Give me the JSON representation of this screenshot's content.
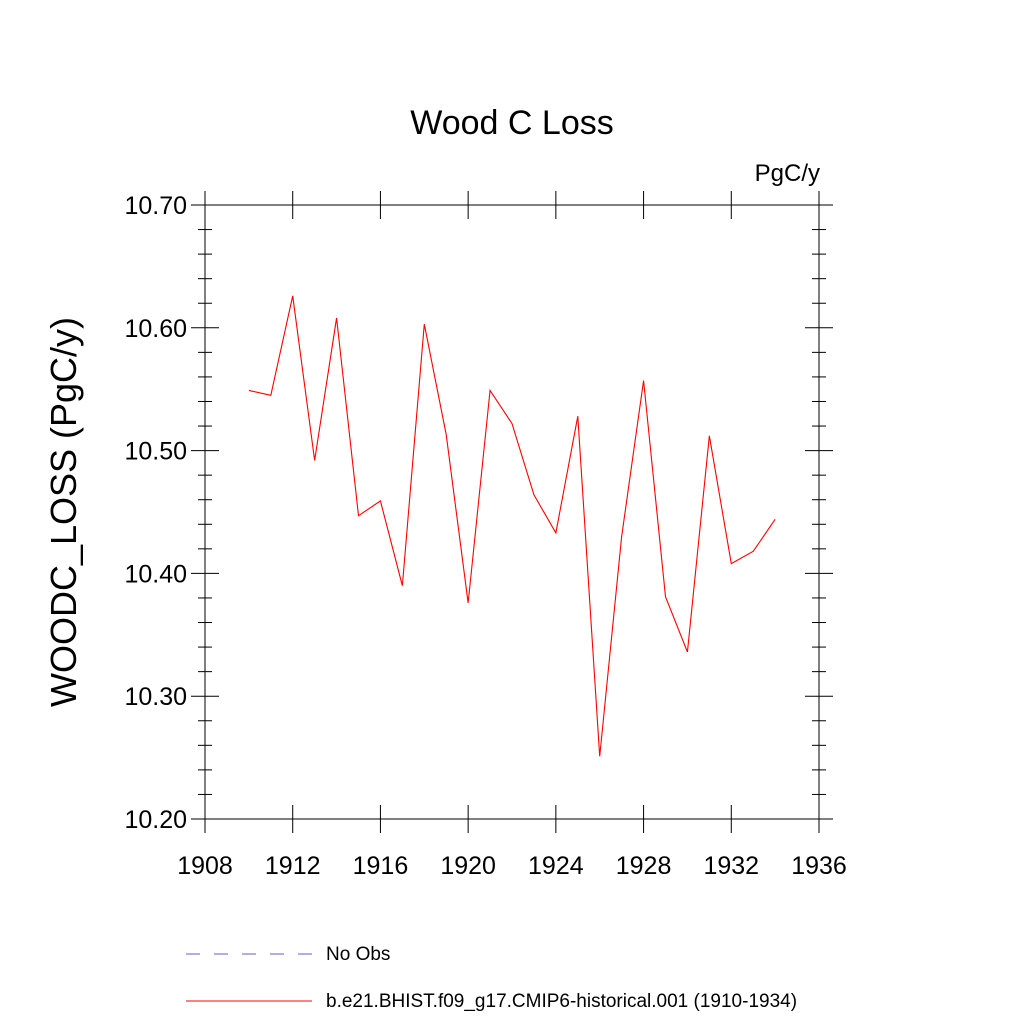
{
  "chart_data": {
    "type": "line",
    "title": "Wood C Loss",
    "units_label": "PgC/y",
    "ylabel": "WOODC_LOSS  (PgC/y)",
    "xlabel": "",
    "xlim": [
      1908,
      1936
    ],
    "ylim": [
      10.2,
      10.7
    ],
    "x_ticks": [
      1908,
      1912,
      1916,
      1920,
      1924,
      1928,
      1932,
      1936
    ],
    "x_tick_labels": [
      "1908",
      "1912",
      "1916",
      "1920",
      "1924",
      "1928",
      "1932",
      "1936"
    ],
    "y_ticks": [
      10.2,
      10.3,
      10.4,
      10.5,
      10.6,
      10.7
    ],
    "y_tick_labels": [
      "10.20",
      "10.30",
      "10.40",
      "10.50",
      "10.60",
      "10.70"
    ],
    "grid": false,
    "legend_position": "bottom",
    "series": [
      {
        "name": "b.e21.BHIST.f09_g17.CMIP6-historical.001 (1910-1934)",
        "color": "#ff0000",
        "dash": "solid",
        "x": [
          1910,
          1911,
          1912,
          1913,
          1914,
          1915,
          1916,
          1917,
          1918,
          1919,
          1920,
          1921,
          1922,
          1923,
          1924,
          1925,
          1926,
          1927,
          1928,
          1929,
          1930,
          1931,
          1932,
          1933,
          1934
        ],
        "values": [
          10.549,
          10.545,
          10.626,
          10.492,
          10.608,
          10.447,
          10.459,
          10.39,
          10.603,
          10.513,
          10.376,
          10.549,
          10.522,
          10.464,
          10.433,
          10.528,
          10.251,
          10.43,
          10.557,
          10.381,
          10.336,
          10.512,
          10.408,
          10.418,
          10.444
        ]
      }
    ],
    "legend": [
      {
        "label": "No Obs",
        "color": "#6a5acd",
        "dash": "dashed"
      },
      {
        "label": "b.e21.BHIST.f09_g17.CMIP6-historical.001 (1910-1934)",
        "color": "#ff0000",
        "dash": "solid"
      }
    ]
  }
}
